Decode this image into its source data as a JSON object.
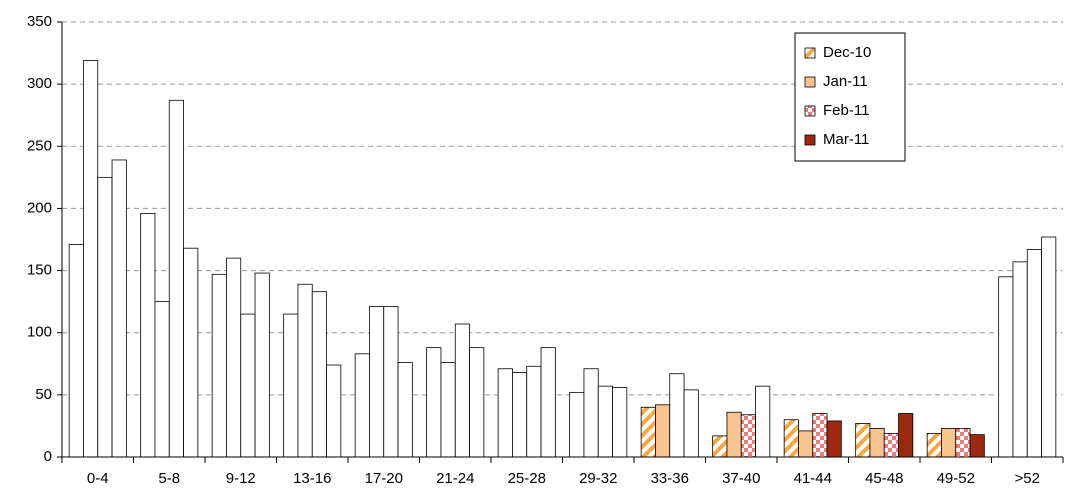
{
  "chart_data": {
    "type": "bar",
    "categories": [
      "0-4",
      "5-8",
      "9-12",
      "13-16",
      "17-20",
      "21-24",
      "25-28",
      "29-32",
      "33-36",
      "37-40",
      "41-44",
      "45-48",
      "49-52",
      ">52"
    ],
    "series": [
      {
        "name": "Dec-10",
        "color": "#f5a742",
        "pattern": "stripes",
        "values": [
          171,
          196,
          147,
          115,
          83,
          88,
          71,
          52,
          40,
          17,
          30,
          27,
          19,
          145
        ],
        "bar_colors": [
          "#ffffff",
          "#ffffff",
          "#ffffff",
          "#ffffff",
          "#ffffff",
          "#ffffff",
          "#ffffff",
          "#ffffff",
          "#f5a742",
          "#f5a742",
          "#f5a742",
          "#f5a742",
          "#f5a742",
          "#ffffff"
        ]
      },
      {
        "name": "Jan-11",
        "color": "#f9c48e",
        "pattern": "solid",
        "values": [
          319,
          125,
          160,
          139,
          121,
          76,
          68,
          71,
          42,
          36,
          21,
          23,
          23,
          157
        ],
        "bar_colors": [
          "#ffffff",
          "#ffffff",
          "#ffffff",
          "#ffffff",
          "#ffffff",
          "#ffffff",
          "#ffffff",
          "#ffffff",
          "#f9c48e",
          "#f9c48e",
          "#f9c48e",
          "#f9c48e",
          "#f9c48e",
          "#ffffff"
        ]
      },
      {
        "name": "Feb-11",
        "color": "#f07b7b",
        "pattern": "checker",
        "values": [
          225,
          287,
          115,
          133,
          121,
          107,
          73,
          57,
          67,
          34,
          35,
          19,
          23,
          167
        ],
        "bar_colors": [
          "#ffffff",
          "#ffffff",
          "#ffffff",
          "#ffffff",
          "#ffffff",
          "#ffffff",
          "#ffffff",
          "#ffffff",
          "#ffffff",
          "#f07b7b",
          "#f07b7b",
          "#f07b7b",
          "#f07b7b",
          "#ffffff"
        ]
      },
      {
        "name": "Mar-11",
        "color": "#9c2a10",
        "pattern": "solid",
        "values": [
          239,
          168,
          148,
          74,
          76,
          88,
          88,
          56,
          54,
          57,
          29,
          35,
          18,
          177
        ],
        "bar_colors": [
          "#ffffff",
          "#ffffff",
          "#ffffff",
          "#ffffff",
          "#ffffff",
          "#ffffff",
          "#ffffff",
          "#ffffff",
          "#ffffff",
          "#ffffff",
          "#9c2a10",
          "#9c2a10",
          "#9c2a10",
          "#ffffff"
        ]
      }
    ],
    "ylim": [
      0,
      350
    ],
    "yticks": [
      0,
      50,
      100,
      150,
      200,
      250,
      300,
      350
    ],
    "grid": true,
    "legend": "top-right"
  }
}
